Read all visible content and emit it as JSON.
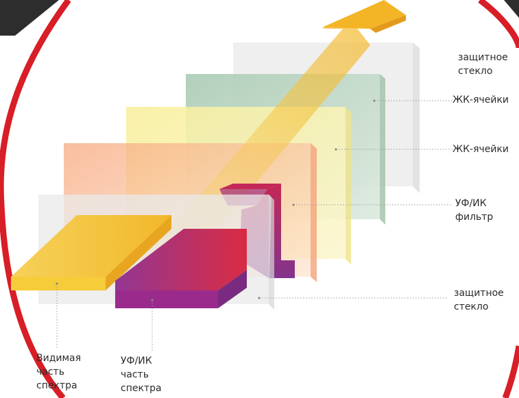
{
  "labels": {
    "protective_glass_top": [
      "защитное",
      "стекло"
    ],
    "lc_cells_1": "ЖК-ячейки",
    "lc_cells_2": "ЖК-ячейки",
    "uv_ir_filter": [
      "УФ/ИК",
      "фильтр"
    ],
    "protective_glass_bottom": [
      "защитное",
      "стекло"
    ],
    "visible_spectrum": [
      "Видимая",
      "часть",
      "спектра"
    ],
    "uv_ir_spectrum": [
      "УФ/ИК",
      "часть",
      "спектра"
    ]
  },
  "colors": {
    "frame_red": "#d81e26",
    "corner_dark": "#2d2d2d",
    "glass": "#e8e8e8",
    "lc_green": "#b7d3c0",
    "lc_yellow": "#f6eeaa",
    "filter_orange": "#f8b48c",
    "visible_beam": "#f3c23a",
    "uv_beam": "#b0246a",
    "leader_line": "#9a9a9a"
  }
}
